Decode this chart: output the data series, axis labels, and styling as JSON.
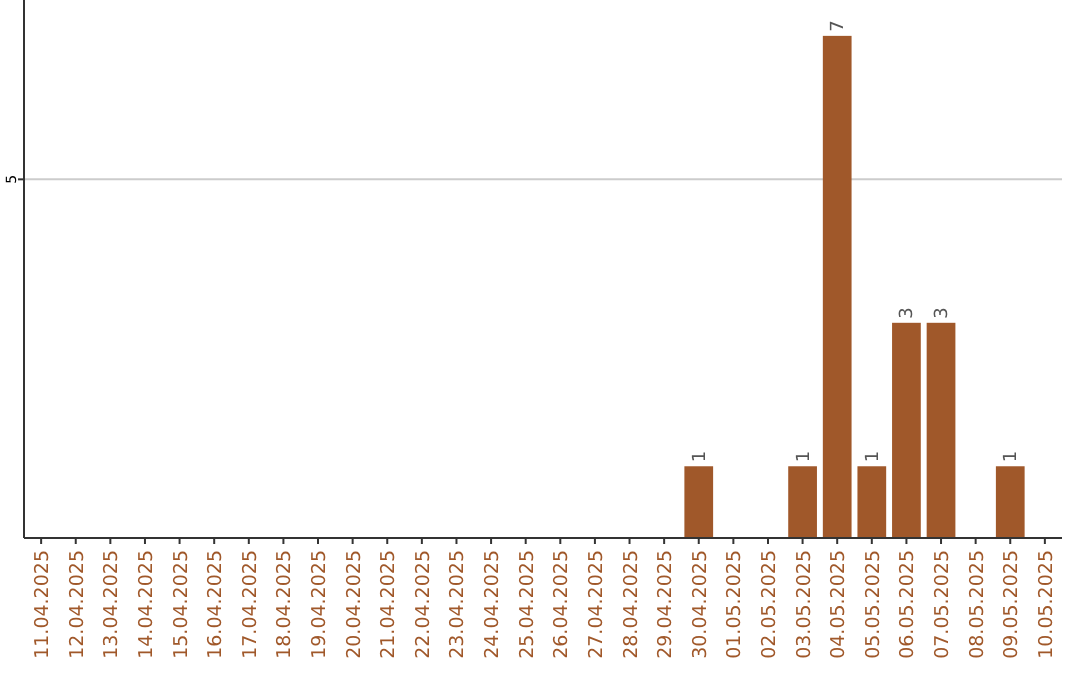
{
  "chart_data": {
    "type": "bar",
    "categories": [
      "11.04.2025",
      "12.04.2025",
      "13.04.2025",
      "14.04.2025",
      "15.04.2025",
      "16.04.2025",
      "17.04.2025",
      "18.04.2025",
      "19.04.2025",
      "20.04.2025",
      "21.04.2025",
      "22.04.2025",
      "23.04.2025",
      "24.04.2025",
      "25.04.2025",
      "26.04.2025",
      "27.04.2025",
      "28.04.2025",
      "29.04.2025",
      "30.04.2025",
      "01.05.2025",
      "02.05.2025",
      "03.05.2025",
      "04.05.2025",
      "05.05.2025",
      "06.05.2025",
      "07.05.2025",
      "08.05.2025",
      "09.05.2025",
      "10.05.2025"
    ],
    "values": [
      null,
      null,
      null,
      null,
      null,
      null,
      null,
      null,
      null,
      null,
      null,
      null,
      null,
      null,
      null,
      null,
      null,
      null,
      null,
      1,
      null,
      null,
      1,
      7,
      1,
      3,
      3,
      null,
      1,
      null
    ],
    "data_labels": true,
    "color": "#a0582a",
    "ylim": [
      0,
      7.5
    ],
    "yticks": [
      5
    ],
    "grid": "y"
  }
}
